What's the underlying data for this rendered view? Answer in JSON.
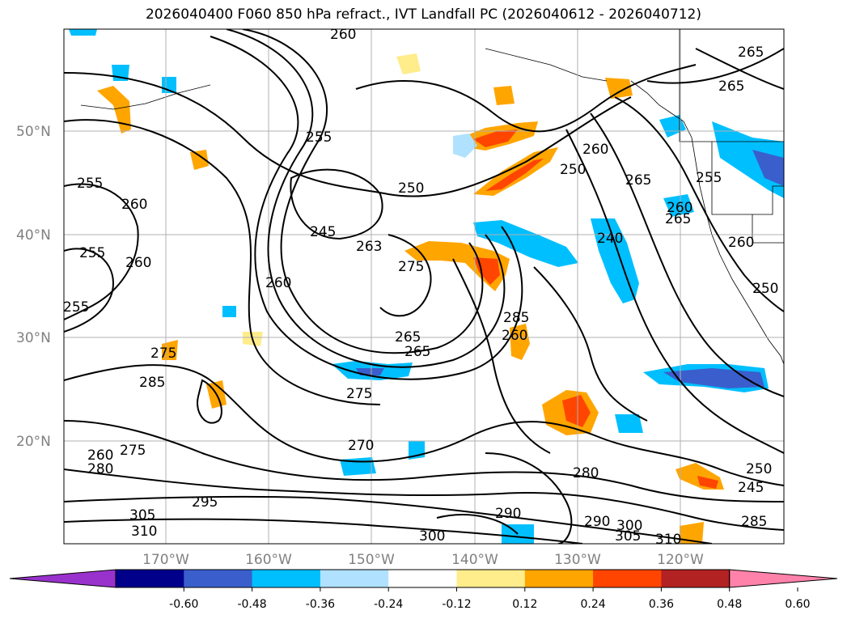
{
  "title": "2026040400 F060 850 hPa refract., IVT Landfall PC (2026040612 - 2026040712)",
  "lat_labels": [
    "50°N",
    "40°N",
    "30°N",
    "20°N"
  ],
  "lon_labels": [
    "170°W",
    "160°W",
    "150°W",
    "140°W",
    "130°W",
    "120°W"
  ],
  "contour_labels": [
    "260",
    "265",
    "265",
    "260",
    "255",
    "250",
    "245",
    "263",
    "260",
    "275",
    "255",
    "260",
    "255",
    "250",
    "265",
    "260",
    "240",
    "265",
    "260",
    "255",
    "250",
    "260",
    "255",
    "260",
    "265",
    "265",
    "275",
    "285",
    "275",
    "280",
    "305",
    "310",
    "295",
    "275",
    "270",
    "260",
    "300",
    "285",
    "290",
    "280",
    "290",
    "300",
    "305",
    "310",
    "285",
    "245",
    "250"
  ],
  "colorbar": {
    "colors": [
      "#9932cc",
      "#00008b",
      "#3a5fcd",
      "#00bfff",
      "#b0e2ff",
      "#ffffff",
      "#ffec8b",
      "#ffa500",
      "#ff4500",
      "#b22222",
      "#ff82ab"
    ],
    "ticks": [
      "-0.60",
      "-0.48",
      "-0.36",
      "-0.24",
      "-0.12",
      "0.12",
      "0.24",
      "0.36",
      "0.48",
      "0.60"
    ]
  }
}
